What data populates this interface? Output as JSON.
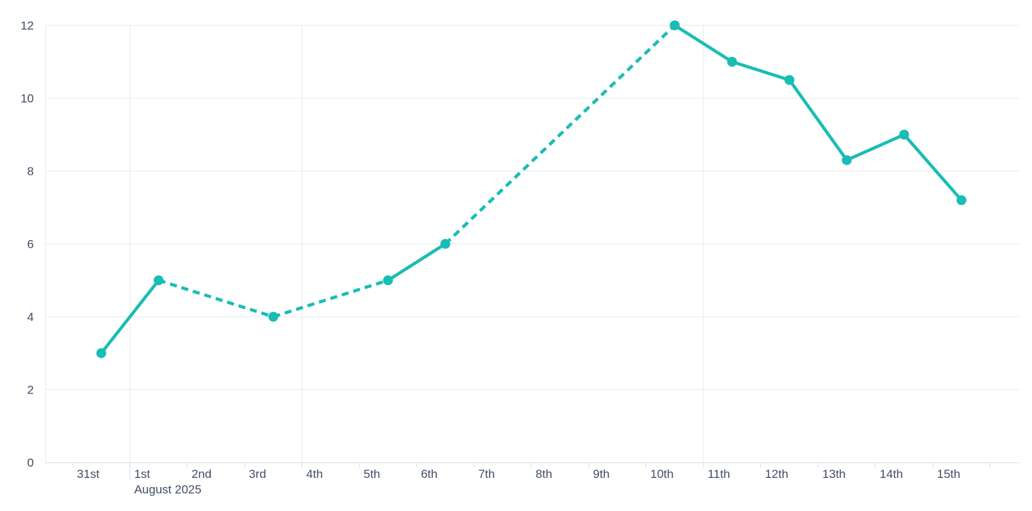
{
  "chart_data": {
    "type": "line",
    "title": "",
    "legend": "none",
    "x_axis": {
      "tick_labels": [
        "31st",
        "1st",
        "2nd",
        "3rd",
        "4th",
        "5th",
        "6th",
        "7th",
        "8th",
        "9th",
        "10th",
        "11th",
        "12th",
        "13th",
        "14th",
        "15th"
      ],
      "month_label": "August 2025",
      "month_label_at": "1st",
      "slots": 17,
      "week_gridline_slots": [
        1,
        4,
        11
      ],
      "tick_placement": "between"
    },
    "y_axis": {
      "tick_labels": [
        "0",
        "2",
        "4",
        "6",
        "8",
        "10",
        "12"
      ],
      "min": 0,
      "max": 12,
      "grid": "on"
    },
    "series": [
      {
        "name": "daily-values",
        "marker": "circle",
        "points": [
          {
            "label": "31st",
            "slot": 0,
            "value": 3
          },
          {
            "label": "1st",
            "slot": 1,
            "value": 5
          },
          {
            "label": "3rd",
            "slot": 3,
            "value": 4
          },
          {
            "label": "5th",
            "slot": 5,
            "value": 5
          },
          {
            "label": "6th",
            "slot": 6,
            "value": 6
          },
          {
            "label": "10th",
            "slot": 10,
            "value": 12
          },
          {
            "label": "11th",
            "slot": 11,
            "value": 11
          },
          {
            "label": "12th",
            "slot": 12,
            "value": 10.5
          },
          {
            "label": "13th",
            "slot": 13,
            "value": 8.3
          },
          {
            "label": "14th",
            "slot": 14,
            "value": 9
          },
          {
            "label": "15th",
            "slot": 15,
            "value": 7.2
          }
        ],
        "segment_styles": [
          "solid",
          "dashed",
          "dashed",
          "solid",
          "dashed",
          "solid",
          "solid",
          "solid",
          "solid",
          "solid"
        ]
      }
    ],
    "colors": {
      "line": "#19BDB4",
      "grid": "#E7EAF2",
      "axis": "#D8DCE8",
      "text": "#414D66",
      "background": "#FFFFFF"
    }
  }
}
